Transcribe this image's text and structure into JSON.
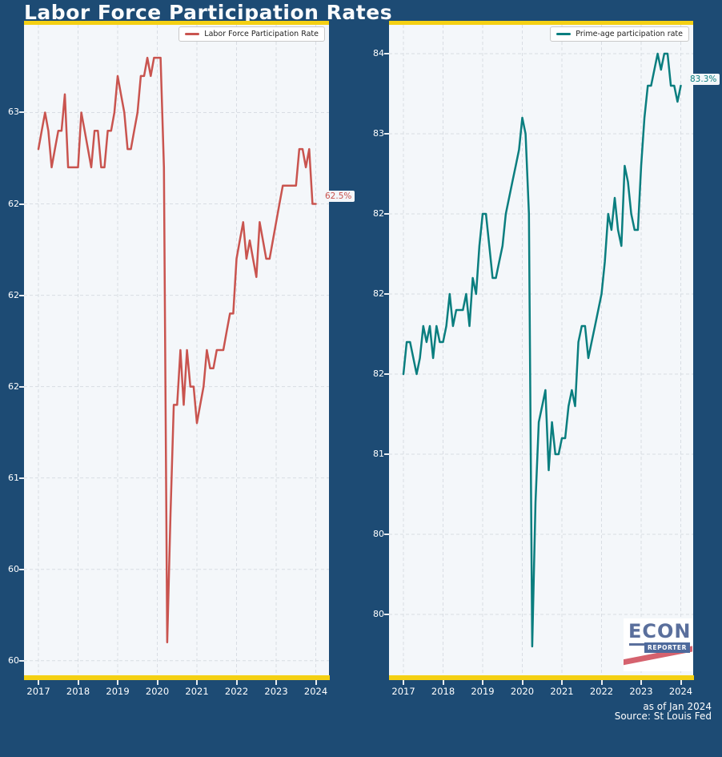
{
  "title": "Labor Force Participation Rates",
  "footer": {
    "as_of": "as of Jan 2024",
    "source": "Source: St Louis Fed"
  },
  "logo": {
    "line1": "ECON",
    "line2": "REPORTER"
  },
  "colors": {
    "background": "#1d4b74",
    "panel_background": "#f4f7fa",
    "accent_bar": "#f4d013",
    "grid": "#d8dde3",
    "tick_text": "#ffffff",
    "lfpr_line": "#c9544f",
    "prime_age_line": "#0a7e7f"
  },
  "chart_data": [
    {
      "type": "line",
      "legend": "Labor Force Participation Rate",
      "legend_position": "upper right",
      "line_color": "#c9544f",
      "annotation": {
        "text": "62.5%"
      },
      "grid": true,
      "x_start_year": 2017,
      "points_per_year": 12,
      "xlim": [
        2016.636,
        2024.333
      ],
      "ylim": [
        59.92,
        63.48
      ],
      "xticks": {
        "values": [
          2017,
          2018,
          2019,
          2020,
          2021,
          2022,
          2023,
          2024
        ],
        "labels": [
          "2017",
          "2018",
          "2019",
          "2020",
          "2021",
          "2022",
          "2023",
          "2024"
        ]
      },
      "yticks": {
        "values": [
          60,
          60.5,
          61,
          61.5,
          62,
          62.5,
          63
        ],
        "labels": [
          "60",
          "60",
          "61",
          "62",
          "62",
          "62",
          "63"
        ]
      },
      "values": [
        62.8,
        62.9,
        63.0,
        62.9,
        62.7,
        62.8,
        62.9,
        62.9,
        63.1,
        62.7,
        62.7,
        62.7,
        62.7,
        63.0,
        62.9,
        62.8,
        62.7,
        62.9,
        62.9,
        62.7,
        62.7,
        62.9,
        62.9,
        63.0,
        63.2,
        63.1,
        63.0,
        62.8,
        62.8,
        62.9,
        63.0,
        63.2,
        63.2,
        63.3,
        63.2,
        63.3,
        63.3,
        63.3,
        62.7,
        60.1,
        60.8,
        61.4,
        61.4,
        61.7,
        61.4,
        61.7,
        61.5,
        61.5,
        61.3,
        61.4,
        61.5,
        61.7,
        61.6,
        61.6,
        61.7,
        61.7,
        61.7,
        61.8,
        61.9,
        61.9,
        62.2,
        62.3,
        62.4,
        62.2,
        62.3,
        62.2,
        62.1,
        62.4,
        62.3,
        62.2,
        62.2,
        62.3,
        62.4,
        62.5,
        62.6,
        62.6,
        62.6,
        62.6,
        62.6,
        62.8,
        62.8,
        62.7,
        62.8,
        62.5,
        62.5
      ]
    },
    {
      "type": "line",
      "legend": "Prime-age participation rate",
      "legend_position": "upper right",
      "line_color": "#0a7e7f",
      "annotation": {
        "text": "83.3%"
      },
      "grid": true,
      "x_start_year": 2017,
      "points_per_year": 12,
      "xlim": [
        2016.636,
        2024.313
      ],
      "ylim": [
        79.62,
        83.68
      ],
      "xticks": {
        "values": [
          2017,
          2018,
          2019,
          2020,
          2021,
          2022,
          2023,
          2024
        ],
        "labels": [
          "2017",
          "2018",
          "2019",
          "2020",
          "2021",
          "2022",
          "2023",
          "2024"
        ]
      },
      "yticks": {
        "values": [
          80,
          80.5,
          81,
          81.5,
          82,
          82.5,
          83,
          83.5
        ],
        "labels": [
          "80",
          "80",
          "81",
          "82",
          "82",
          "82",
          "83",
          "84"
        ]
      },
      "values": [
        81.5,
        81.7,
        81.7,
        81.6,
        81.5,
        81.6,
        81.8,
        81.7,
        81.8,
        81.6,
        81.8,
        81.7,
        81.7,
        81.8,
        82.0,
        81.8,
        81.9,
        81.9,
        81.9,
        82.0,
        81.8,
        82.1,
        82.0,
        82.3,
        82.5,
        82.5,
        82.3,
        82.1,
        82.1,
        82.2,
        82.3,
        82.5,
        82.6,
        82.7,
        82.8,
        82.9,
        83.1,
        83.0,
        82.5,
        79.8,
        80.7,
        81.2,
        81.3,
        81.4,
        80.9,
        81.2,
        81.0,
        81.0,
        81.1,
        81.1,
        81.3,
        81.4,
        81.3,
        81.7,
        81.8,
        81.8,
        81.6,
        81.7,
        81.8,
        81.9,
        82.0,
        82.2,
        82.5,
        82.4,
        82.6,
        82.4,
        82.3,
        82.8,
        82.7,
        82.5,
        82.4,
        82.4,
        82.8,
        83.1,
        83.3,
        83.3,
        83.4,
        83.5,
        83.4,
        83.5,
        83.5,
        83.3,
        83.3,
        83.2,
        83.3
      ]
    }
  ]
}
